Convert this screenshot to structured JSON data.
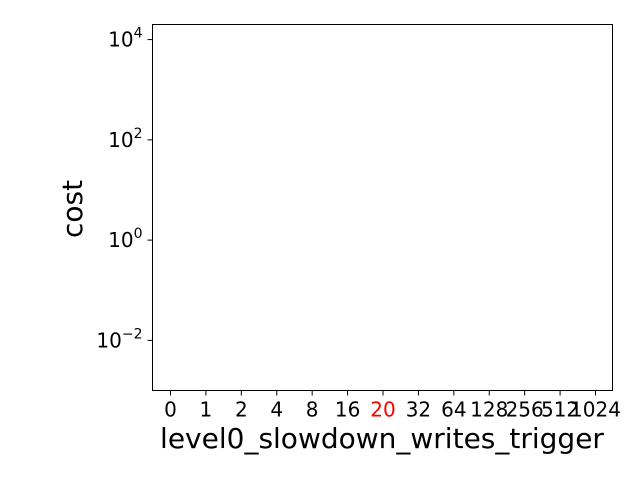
{
  "chart_data": {
    "type": "scatter",
    "title": "",
    "xlabel": "level0_slowdown_writes_trigger",
    "ylabel": "cost",
    "categories": [
      "0",
      "1",
      "2",
      "4",
      "8",
      "16",
      "20",
      "32",
      "64",
      "128",
      "256",
      "512",
      "1024"
    ],
    "highlighted_category": "20",
    "highlight_color": "#ff0000",
    "yscale": "log",
    "ylim": [
      0.001,
      20000
    ],
    "y_ticks": [
      {
        "value": 0.01,
        "base": "10",
        "exp": "−2"
      },
      {
        "value": 1,
        "base": "10",
        "exp": "0"
      },
      {
        "value": 100,
        "base": "10",
        "exp": "2"
      },
      {
        "value": 10000,
        "base": "10",
        "exp": "4"
      }
    ],
    "series": [],
    "grid": false,
    "legend": "none"
  }
}
